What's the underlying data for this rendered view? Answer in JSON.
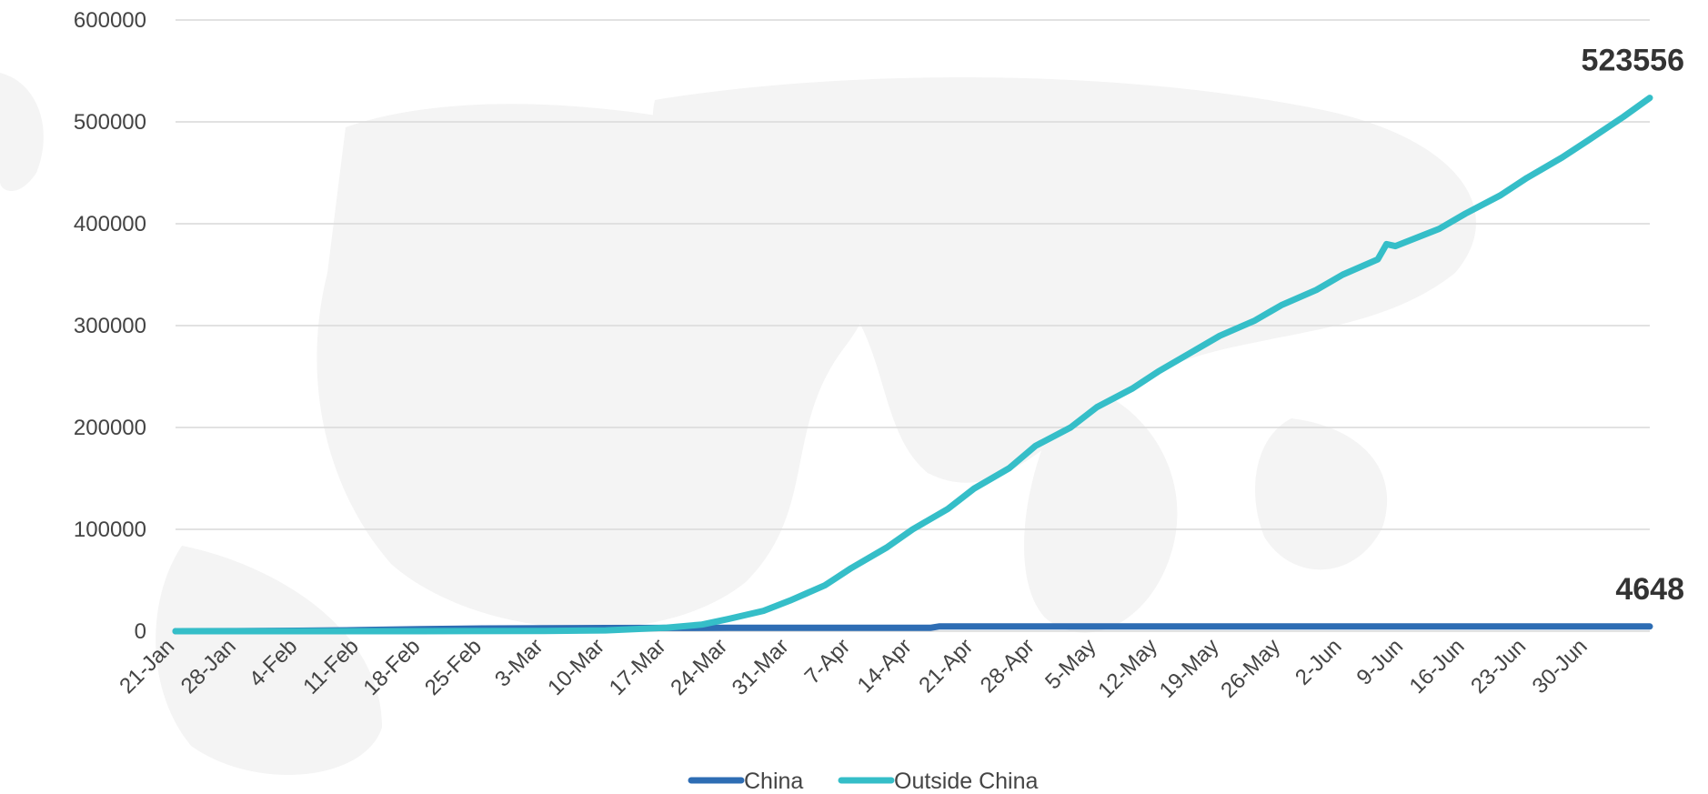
{
  "chart_data": {
    "type": "line",
    "title": "",
    "xlabel": "",
    "ylabel": "",
    "ylim": [
      0,
      600000
    ],
    "y_ticks": [
      "0",
      "100000",
      "200000",
      "300000",
      "400000",
      "500000",
      "600000"
    ],
    "x_ticks": [
      "21-Jan",
      "28-Jan",
      "4-Feb",
      "11-Feb",
      "18-Feb",
      "25-Feb",
      "3-Mar",
      "10-Mar",
      "17-Mar",
      "24-Mar",
      "31-Mar",
      "7-Apr",
      "14-Apr",
      "21-Apr",
      "28-Apr",
      "5-May",
      "12-May",
      "19-May",
      "26-May",
      "2-Jun",
      "9-Jun",
      "16-Jun",
      "23-Jun",
      "30-Jun"
    ],
    "x_range": [
      "2020-01-21",
      "2020-07-07"
    ],
    "grid": true,
    "legend_position": "bottom",
    "series": [
      {
        "name": "China",
        "color": "#2E6DB4",
        "end_label": "4648",
        "points": [
          [
            "2020-01-21",
            6
          ],
          [
            "2020-01-28",
            132
          ],
          [
            "2020-02-04",
            490
          ],
          [
            "2020-02-11",
            1113
          ],
          [
            "2020-02-18",
            2004
          ],
          [
            "2020-02-25",
            2715
          ],
          [
            "2020-03-03",
            2981
          ],
          [
            "2020-03-10",
            3136
          ],
          [
            "2020-03-17",
            3237
          ],
          [
            "2020-03-24",
            3281
          ],
          [
            "2020-03-31",
            3309
          ],
          [
            "2020-04-07",
            3331
          ],
          [
            "2020-04-14",
            3341
          ],
          [
            "2020-04-16",
            3342
          ],
          [
            "2020-04-17",
            4632
          ],
          [
            "2020-04-21",
            4632
          ],
          [
            "2020-05-31",
            4634
          ],
          [
            "2020-07-07",
            4648
          ]
        ]
      },
      {
        "name": "Outside China",
        "color": "#35BEC8",
        "end_label": "523556",
        "points": [
          [
            "2020-01-21",
            0
          ],
          [
            "2020-02-18",
            5
          ],
          [
            "2020-03-03",
            300
          ],
          [
            "2020-03-10",
            800
          ],
          [
            "2020-03-17",
            3500
          ],
          [
            "2020-03-21",
            6500
          ],
          [
            "2020-03-24",
            12000
          ],
          [
            "2020-03-28",
            20000
          ],
          [
            "2020-03-31",
            30000
          ],
          [
            "2020-04-04",
            45000
          ],
          [
            "2020-04-07",
            62000
          ],
          [
            "2020-04-11",
            82000
          ],
          [
            "2020-04-14",
            100000
          ],
          [
            "2020-04-18",
            120000
          ],
          [
            "2020-04-21",
            140000
          ],
          [
            "2020-04-25",
            160000
          ],
          [
            "2020-04-28",
            182000
          ],
          [
            "2020-05-02",
            200000
          ],
          [
            "2020-05-05",
            220000
          ],
          [
            "2020-05-09",
            238000
          ],
          [
            "2020-05-12",
            255000
          ],
          [
            "2020-05-16",
            275000
          ],
          [
            "2020-05-19",
            290000
          ],
          [
            "2020-05-23",
            305000
          ],
          [
            "2020-05-26",
            320000
          ],
          [
            "2020-05-30",
            335000
          ],
          [
            "2020-06-02",
            350000
          ],
          [
            "2020-06-06",
            365000
          ],
          [
            "2020-06-07",
            380000
          ],
          [
            "2020-06-08",
            378000
          ],
          [
            "2020-06-13",
            395000
          ],
          [
            "2020-06-16",
            410000
          ],
          [
            "2020-06-20",
            428000
          ],
          [
            "2020-06-23",
            445000
          ],
          [
            "2020-06-27",
            465000
          ],
          [
            "2020-06-30",
            482000
          ],
          [
            "2020-07-04",
            505000
          ],
          [
            "2020-07-07",
            523556
          ]
        ]
      }
    ]
  }
}
